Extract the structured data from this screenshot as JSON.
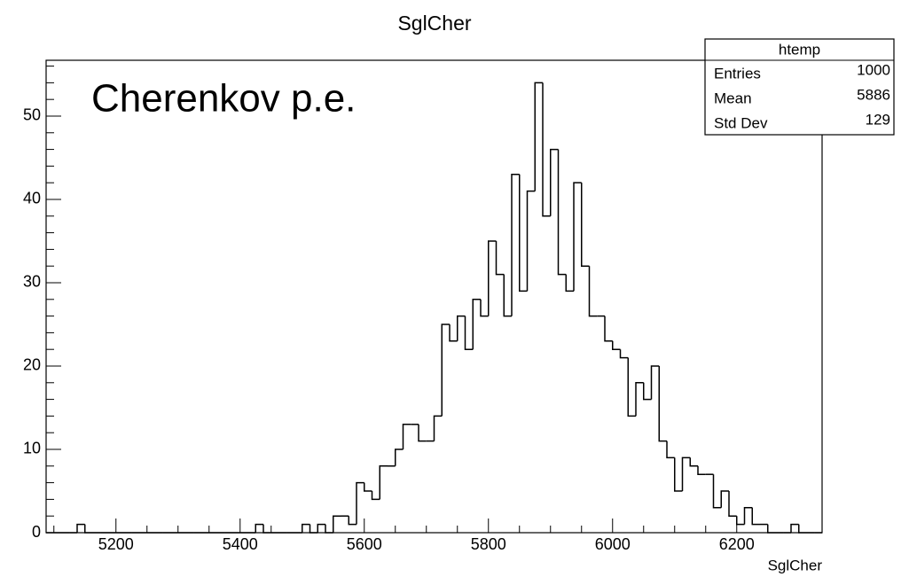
{
  "chart_data": {
    "type": "histogram",
    "title": "SglCher",
    "xlabel": "SglCher",
    "annotation": "Cherenkov p.e.",
    "annotation_color": "#1a3fa0",
    "color": "#000000",
    "bins": [
      5087.5,
      5100,
      5112.5,
      5125,
      5137.5,
      5150,
      5162.5,
      5175,
      5187.5,
      5200,
      5212.5,
      5225,
      5237.5,
      5250,
      5262.5,
      5275,
      5287.5,
      5300,
      5312.5,
      5325,
      5337.5,
      5350,
      5362.5,
      5375,
      5387.5,
      5400,
      5412.5,
      5425,
      5437.5,
      5450,
      5462.5,
      5475,
      5487.5,
      5500,
      5512.5,
      5525,
      5537.5,
      5550,
      5562.5,
      5575,
      5587.5,
      5600,
      5612.5,
      5625,
      5637.5,
      5650,
      5662.5,
      5675,
      5687.5,
      5700,
      5712.5,
      5725,
      5737.5,
      5750,
      5762.5,
      5775,
      5787.5,
      5800,
      5812.5,
      5825,
      5837.5,
      5850,
      5862.5,
      5875,
      5887.5,
      5900,
      5912.5,
      5925,
      5937.5,
      5950,
      5962.5,
      5975,
      5987.5,
      6000,
      6012.5,
      6025,
      6037.5,
      6050,
      6062.5,
      6075,
      6087.5,
      6100,
      6112.5,
      6125,
      6137.5,
      6150,
      6162.5,
      6175,
      6187.5,
      6200,
      6212.5,
      6225,
      6237.5,
      6250,
      6262.5,
      6275,
      6287.5,
      6300,
      6312.5,
      6325,
      6337.5
    ],
    "values": [
      0,
      0,
      0,
      0,
      1,
      0,
      0,
      0,
      0,
      0,
      0,
      0,
      0,
      0,
      0,
      0,
      0,
      0,
      0,
      0,
      0,
      0,
      0,
      0,
      0,
      0,
      0,
      1,
      0,
      0,
      0,
      0,
      0,
      1,
      0,
      1,
      0,
      2,
      2,
      1,
      6,
      5,
      4,
      8,
      8,
      10,
      13,
      13,
      11,
      11,
      14,
      25,
      23,
      26,
      22,
      28,
      26,
      35,
      31,
      26,
      43,
      29,
      41,
      54,
      38,
      46,
      31,
      29,
      42,
      32,
      26,
      26,
      23,
      22,
      21,
      14,
      18,
      16,
      20,
      11,
      9,
      5,
      9,
      8,
      7,
      7,
      3,
      5,
      2,
      1,
      3,
      1,
      1,
      0,
      0,
      0,
      1,
      0,
      0,
      0
    ],
    "xlim": [
      5087.5,
      6337.5
    ],
    "ylim": [
      0,
      56.7
    ],
    "xticks": [
      5200,
      5400,
      5600,
      5800,
      6000,
      6200
    ],
    "xminorticks": [
      5100,
      5150,
      5250,
      5300,
      5350,
      5450,
      5500,
      5550,
      5650,
      5700,
      5750,
      5850,
      5900,
      5950,
      6050,
      6100,
      6150,
      6250,
      6300
    ],
    "yticks": [
      0,
      10,
      20,
      30,
      40,
      50
    ],
    "yminorticks": [
      2,
      4,
      6,
      8,
      12,
      14,
      16,
      18,
      22,
      24,
      26,
      28,
      32,
      34,
      36,
      38,
      42,
      44,
      46,
      48,
      52,
      54,
      56
    ],
    "stats": {
      "title": "htemp",
      "rows": [
        {
          "label": "Entries",
          "value": 1000
        },
        {
          "label": "Mean",
          "value": 5886
        },
        {
          "label": "Std Dev",
          "value": 129
        }
      ]
    }
  }
}
